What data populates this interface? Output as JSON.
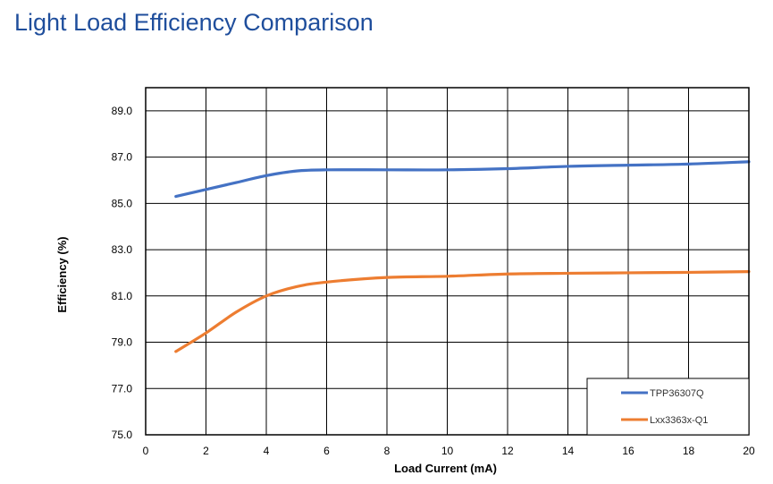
{
  "title": "Light Load Efficiency Comparison",
  "chart_data": {
    "type": "line",
    "title": "Light Load Efficiency Comparison",
    "xlabel": "Load Current (mA)",
    "ylabel": "Efficiency (%)",
    "xlim": [
      0,
      20
    ],
    "ylim": [
      75,
      90
    ],
    "xticks": [
      "0",
      "2",
      "4",
      "6",
      "8",
      "10",
      "12",
      "14",
      "16",
      "18",
      "20"
    ],
    "yticks": [
      "75.0",
      "77.0",
      "79.0",
      "81.0",
      "83.0",
      "85.0",
      "87.0",
      "89.0"
    ],
    "grid": true,
    "legend": "bottom-right",
    "series": [
      {
        "name": "TPP36307Q",
        "color": "#4472c4",
        "x": [
          1,
          2,
          3,
          4,
          5,
          6,
          8,
          10,
          12,
          14,
          16,
          18,
          20
        ],
        "y": [
          85.3,
          85.6,
          85.9,
          86.2,
          86.4,
          86.45,
          86.45,
          86.45,
          86.5,
          86.6,
          86.65,
          86.7,
          86.8
        ]
      },
      {
        "name": "Lxx3363x-Q1",
        "color": "#ed7d31",
        "x": [
          1,
          2,
          3,
          4,
          5,
          6,
          8,
          10,
          12,
          14,
          16,
          18,
          20
        ],
        "y": [
          78.6,
          79.4,
          80.3,
          81.0,
          81.4,
          81.6,
          81.8,
          81.85,
          81.95,
          81.98,
          82.0,
          82.02,
          82.05
        ]
      }
    ]
  }
}
